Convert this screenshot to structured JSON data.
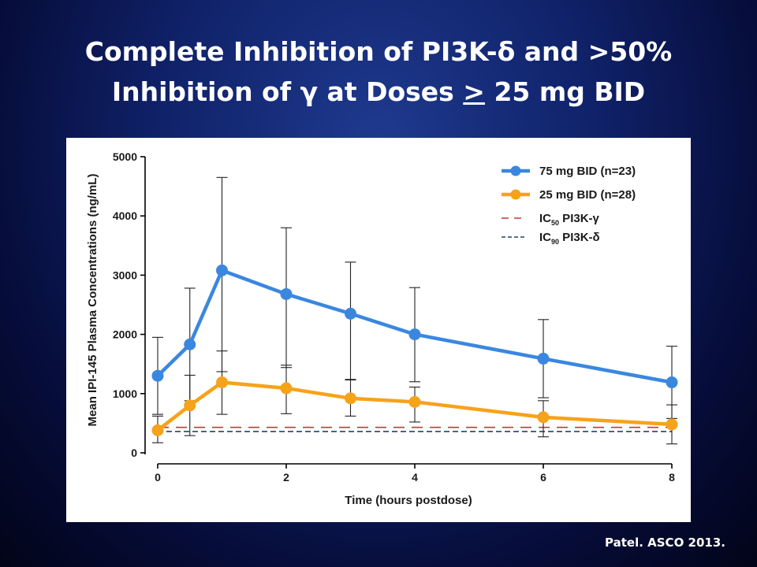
{
  "slide": {
    "title_line1": "Complete Inhibition of PI3K-δ and >50%",
    "title_line2_pre": "Inhibition of γ at Doses ",
    "title_line2_u": ">",
    "title_line2_post": " 25 mg BID",
    "citation": "Patel. ASCO 2013."
  },
  "chart_data": {
    "type": "line",
    "xlabel": "Time (hours postdose)",
    "ylabel": "Mean IPI-145 Plasma Concentrations (ng/mL)",
    "xlim": [
      0,
      8
    ],
    "ylim": [
      0,
      5000
    ],
    "xticks": [
      0,
      2,
      4,
      6,
      8
    ],
    "yticks": [
      0,
      1000,
      2000,
      3000,
      4000,
      5000
    ],
    "grid": false,
    "legend_position": "top-right",
    "x": [
      0,
      0.5,
      1,
      2,
      3,
      4,
      6,
      8
    ],
    "series": [
      {
        "name": "75 mg BID (n=23)",
        "color": "#3a87e0",
        "values": [
          1300,
          1830,
          3080,
          2680,
          2350,
          2000,
          1590,
          1190
        ],
        "error_low": [
          650,
          880,
          1370,
          1440,
          1230,
          1200,
          930,
          580
        ],
        "error_high": [
          1950,
          2780,
          4650,
          3800,
          3220,
          2790,
          2250,
          1800
        ]
      },
      {
        "name": "25 mg BID (n=28)",
        "color": "#f7a21b",
        "values": [
          380,
          800,
          1190,
          1090,
          920,
          860,
          600,
          480
        ],
        "error_low": [
          170,
          290,
          650,
          660,
          620,
          520,
          270,
          150
        ],
        "error_high": [
          620,
          1310,
          1720,
          1480,
          1240,
          1110,
          880,
          810
        ]
      }
    ],
    "reference_lines": [
      {
        "name_pre": "IC",
        "name_sub": "50",
        "name_post": " PI3K-γ",
        "value": 430,
        "color": "#c0393b",
        "style": "long-dash"
      },
      {
        "name_pre": "IC",
        "name_sub": "90",
        "name_post": " PI3K-δ",
        "value": 360,
        "color": "#2b3f66",
        "style": "short-dash"
      }
    ]
  }
}
